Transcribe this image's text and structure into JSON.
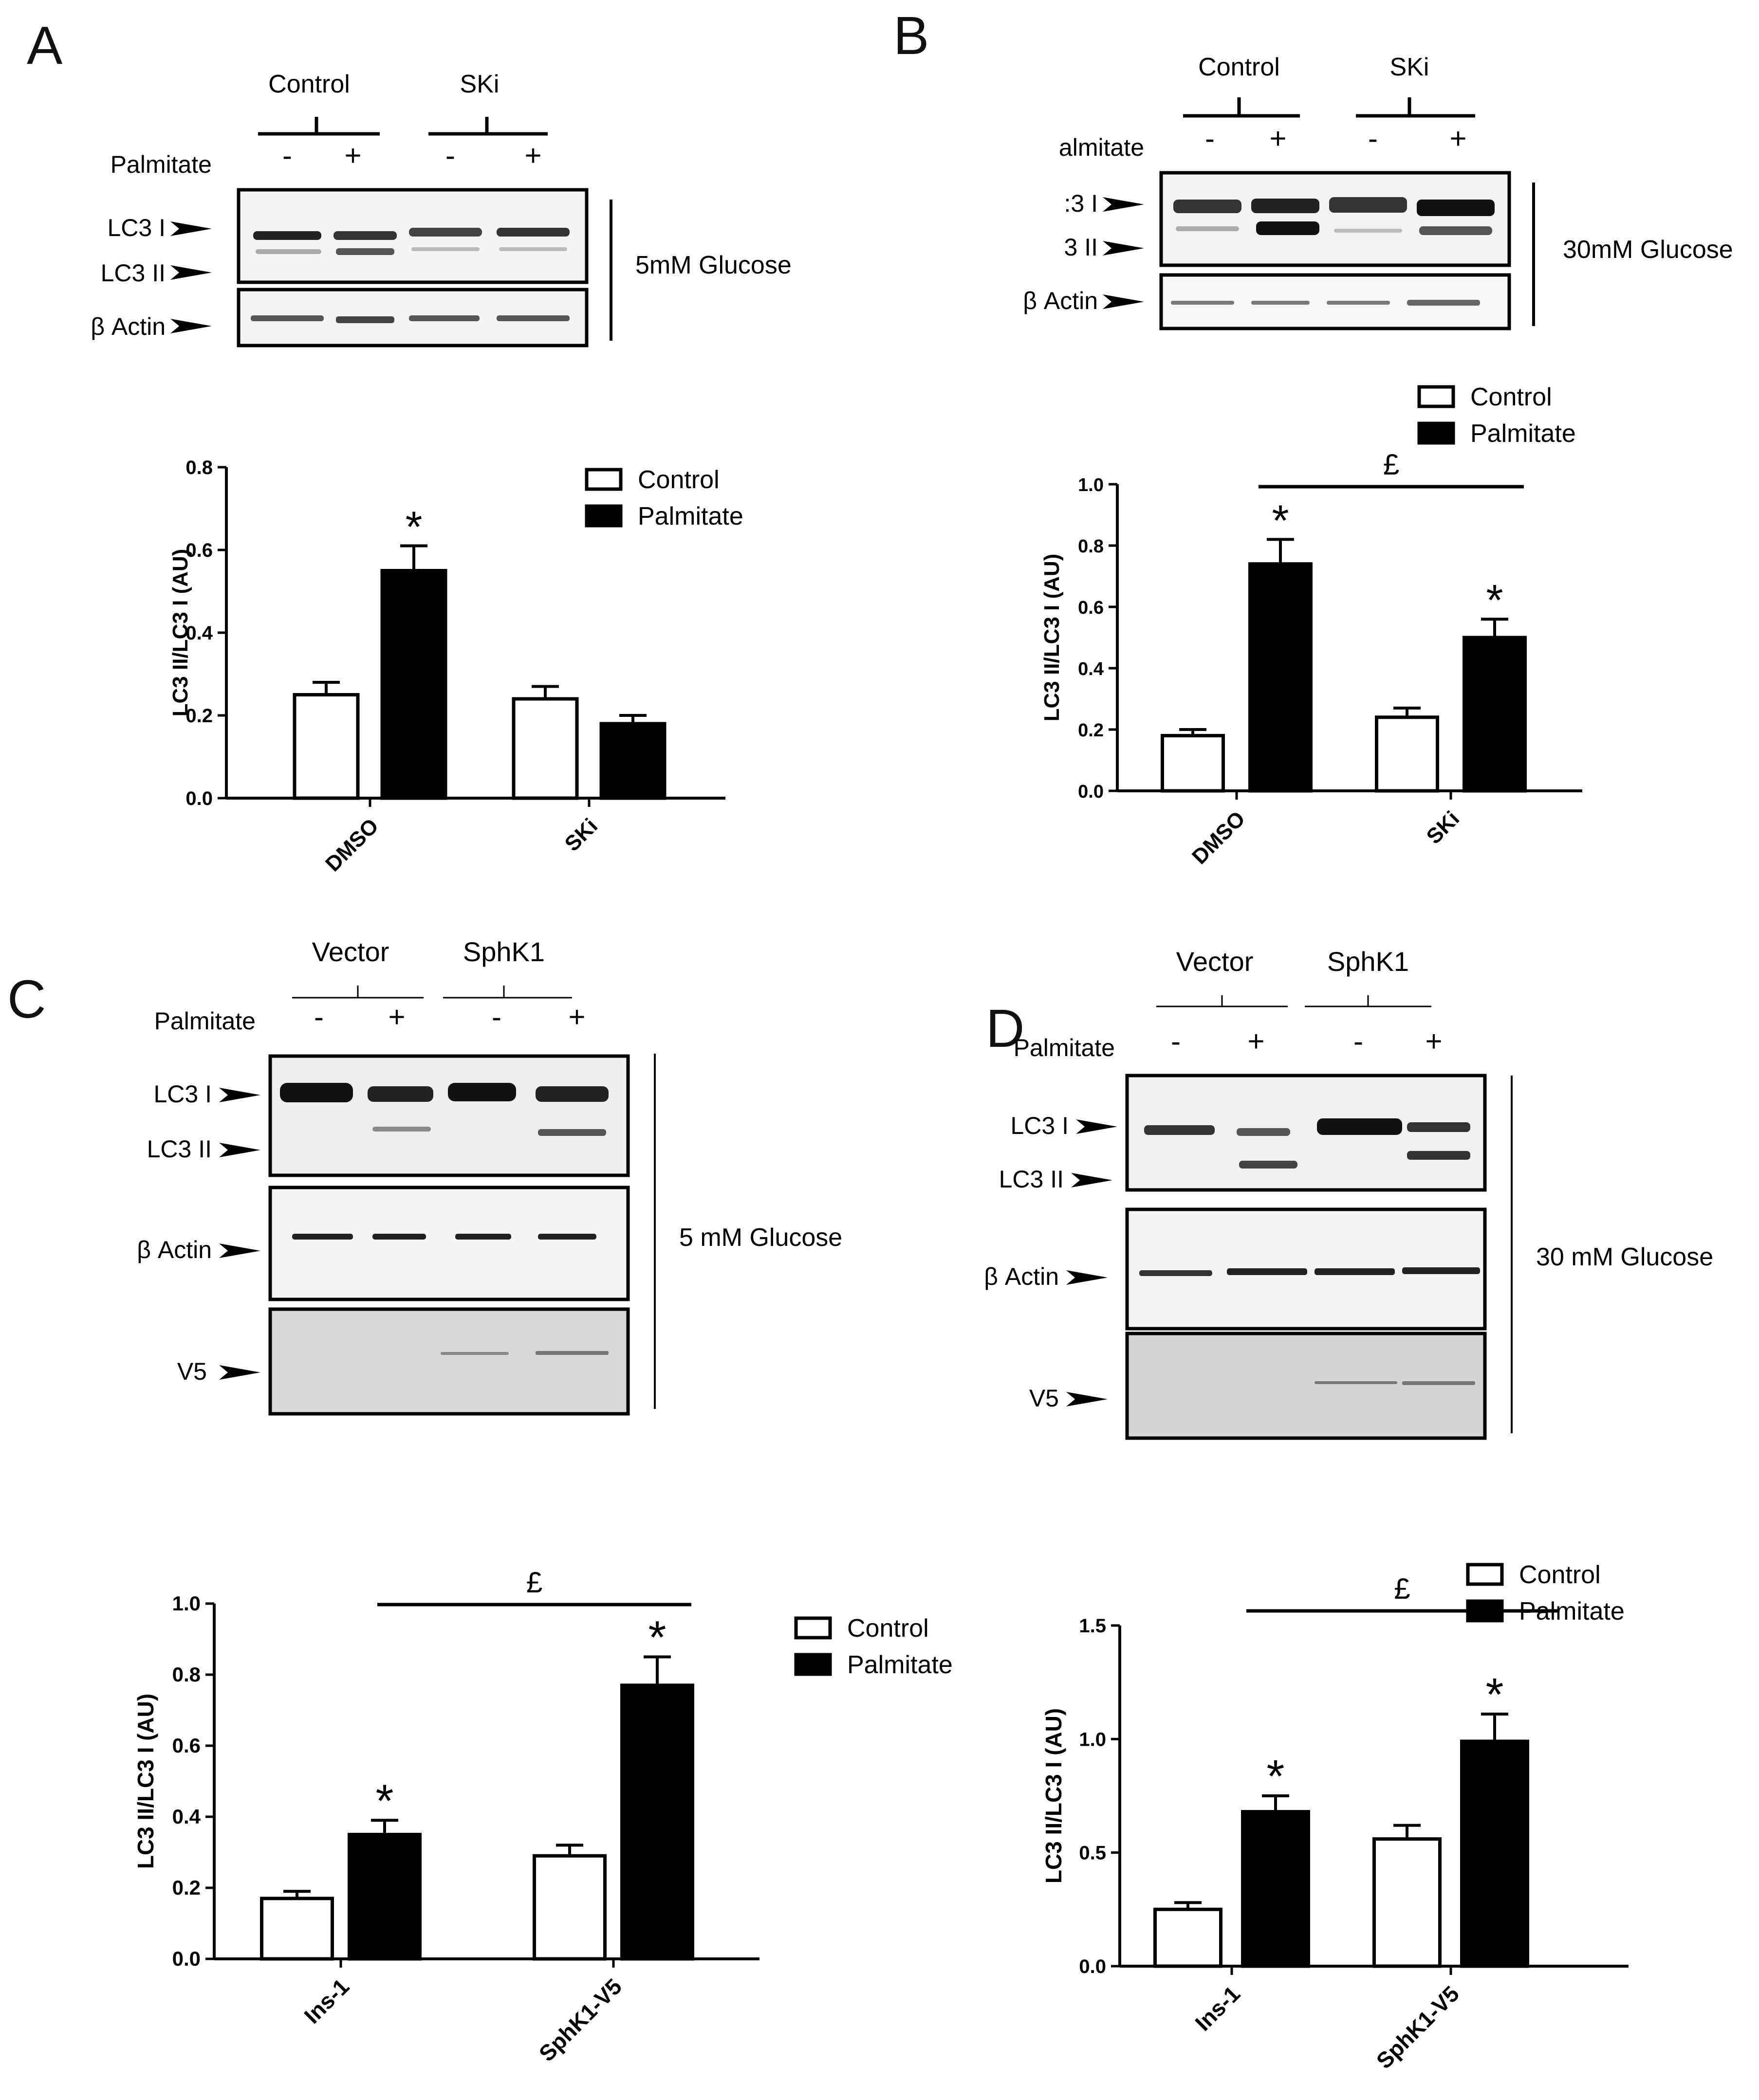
{
  "panels": {
    "A": {
      "letter": "A",
      "blot": {
        "groups": [
          "Control",
          "SKi"
        ],
        "treatment_label": "Palmitate",
        "signs": [
          "-",
          "+",
          "-",
          "+"
        ],
        "row_labels": [
          "LC3 I",
          "LC3 II",
          "β Actin"
        ],
        "condition": "5mM Glucose"
      }
    },
    "B": {
      "letter": "B",
      "blot": {
        "groups": [
          "Control",
          "SKi"
        ],
        "treatment_label": "almitate",
        "signs": [
          "-",
          "+",
          "-",
          "+"
        ],
        "row_labels": [
          ":3 I",
          "3 II",
          "β Actin"
        ],
        "condition": "30mM Glucose"
      }
    },
    "C": {
      "letter": "C",
      "blot": {
        "groups": [
          "Vector",
          "SphK1"
        ],
        "treatment_label": "Palmitate",
        "signs": [
          "-",
          "+",
          "-",
          "+"
        ],
        "row_labels": [
          "LC3 I",
          "LC3 II",
          "β Actin",
          "V5"
        ],
        "condition": "5 mM Glucose"
      }
    },
    "D": {
      "letter": "D",
      "blot": {
        "groups": [
          "Vector",
          "SphK1"
        ],
        "treatment_label": "Palmitate",
        "signs": [
          "-",
          "+",
          "-",
          "+"
        ],
        "row_labels": [
          "LC3 I",
          "LC3 II",
          "β Actin",
          "V5"
        ],
        "condition": "30 mM Glucose"
      }
    }
  },
  "colors": {
    "control": "#ffffff",
    "palmitate": "#000000",
    "axis": "#000000"
  },
  "chart_data": [
    {
      "panel": "A",
      "type": "bar",
      "categories": [
        "DMSO",
        "SKi"
      ],
      "ylabel": "LC3 II/LC3 I (AU)",
      "ylim": [
        0,
        0.8
      ],
      "yticks": [
        "0.0",
        "0.2",
        "0.4",
        "0.6",
        "0.8"
      ],
      "series": [
        {
          "name": "Control",
          "values": [
            0.25,
            0.24
          ],
          "errors": [
            0.03,
            0.03
          ]
        },
        {
          "name": "Palmitate",
          "values": [
            0.55,
            0.18
          ],
          "errors": [
            0.06,
            0.02
          ]
        }
      ],
      "annotations": {
        "stars": [
          [
            1,
            0
          ]
        ],
        "star_text": "*",
        "bracket": null
      }
    },
    {
      "panel": "B",
      "type": "bar",
      "categories": [
        "DMSO",
        "SKi"
      ],
      "ylabel": "LC3 II/LC3 I (AU)",
      "ylim": [
        0,
        1.0
      ],
      "yticks": [
        "0.0",
        "0.2",
        "0.4",
        "0.6",
        "0.8",
        "1.0"
      ],
      "series": [
        {
          "name": "Control",
          "values": [
            0.18,
            0.24
          ],
          "errors": [
            0.02,
            0.03
          ]
        },
        {
          "name": "Palmitate",
          "values": [
            0.74,
            0.5
          ],
          "errors": [
            0.08,
            0.06
          ]
        }
      ],
      "annotations": {
        "stars": [
          [
            1,
            0
          ],
          [
            1,
            1
          ]
        ],
        "star_text": "*",
        "bracket": "£"
      }
    },
    {
      "panel": "C",
      "type": "bar",
      "categories": [
        "Ins-1",
        "SphK1-V5"
      ],
      "ylabel": "LC3 II/LC3 I (AU)",
      "ylim": [
        0,
        1.0
      ],
      "yticks": [
        "0.0",
        "0.2",
        "0.4",
        "0.6",
        "0.8",
        "1.0"
      ],
      "series": [
        {
          "name": "Control",
          "values": [
            0.17,
            0.29
          ],
          "errors": [
            0.02,
            0.03
          ]
        },
        {
          "name": "Palmitate",
          "values": [
            0.35,
            0.77
          ],
          "errors": [
            0.04,
            0.08
          ]
        }
      ],
      "annotations": {
        "stars": [
          [
            1,
            0
          ],
          [
            1,
            1
          ]
        ],
        "star_text": "*",
        "bracket": "£"
      }
    },
    {
      "panel": "D",
      "type": "bar",
      "categories": [
        "Ins-1",
        "SphK1-V5"
      ],
      "ylabel": "LC3 II/LC3 I (AU)",
      "ylim": [
        0,
        1.5
      ],
      "yticks": [
        "0.0",
        "0.5",
        "1.0",
        "1.5"
      ],
      "series": [
        {
          "name": "Control",
          "values": [
            0.25,
            0.56
          ],
          "errors": [
            0.03,
            0.06
          ]
        },
        {
          "name": "Palmitate",
          "values": [
            0.68,
            0.99
          ],
          "errors": [
            0.07,
            0.12
          ]
        }
      ],
      "annotations": {
        "stars": [
          [
            1,
            0
          ],
          [
            1,
            1
          ]
        ],
        "star_text": "*",
        "bracket": "£"
      }
    }
  ]
}
